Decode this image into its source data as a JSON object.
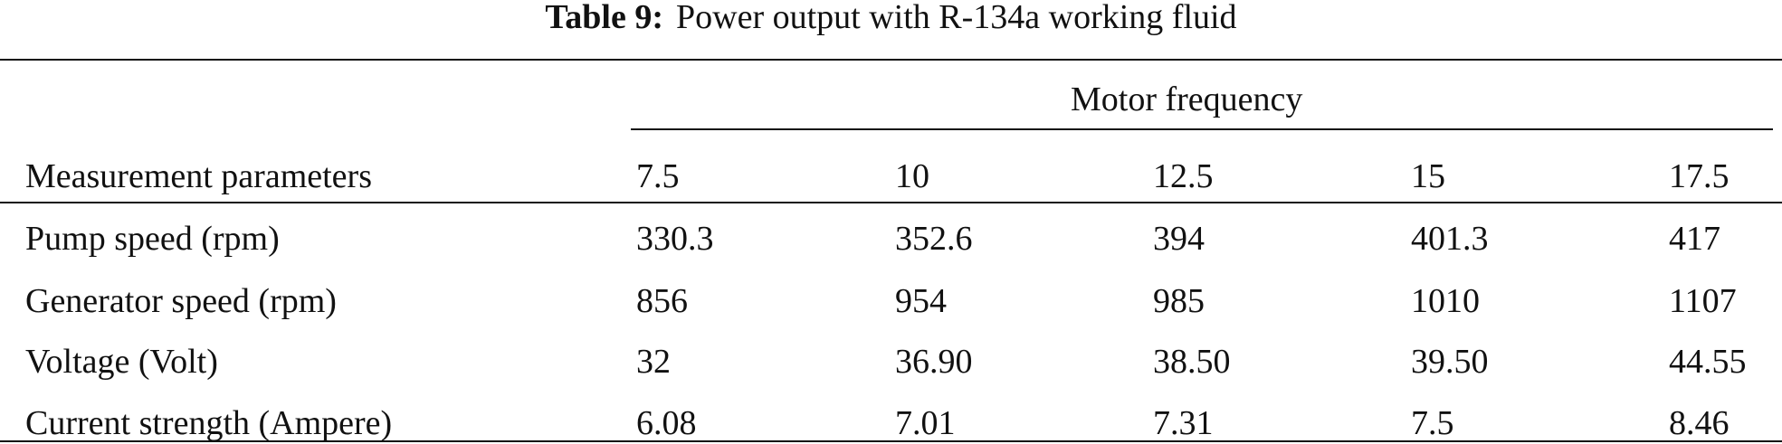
{
  "title": {
    "label": "Table 9:",
    "text": "Power output with R-134a working fluid"
  },
  "table": {
    "group_header": "Motor frequency",
    "columns": [
      "Measurement parameters",
      "7.5",
      "10",
      "12.5",
      "15",
      "17.5"
    ],
    "rows": [
      [
        "Pump speed (rpm)",
        "330.3",
        "352.6",
        "394",
        "401.3",
        "417"
      ],
      [
        "Generator speed (rpm)",
        "856",
        "954",
        "985",
        "1010",
        "1107"
      ],
      [
        "Voltage (Volt)",
        "32",
        "36.90",
        "38.50",
        "39.50",
        "44.55"
      ],
      [
        "Current strength (Ampere)",
        "6.08",
        "7.01",
        "7.31",
        "7.5",
        "8.46"
      ]
    ]
  }
}
